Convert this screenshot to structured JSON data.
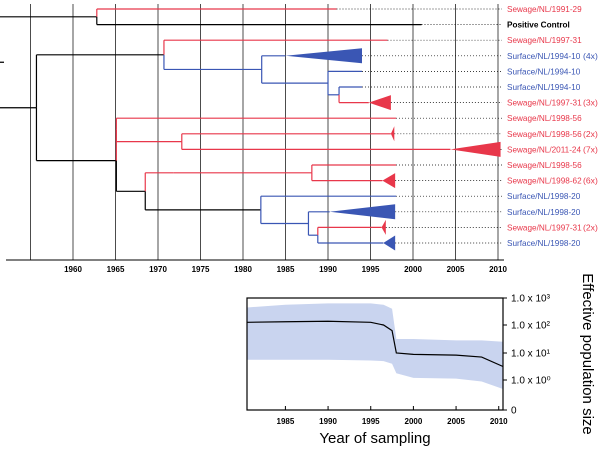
{
  "colors": {
    "sewage": "#e8374a",
    "surface": "#3a56b4",
    "control": "#000000",
    "band": "#c9d4ef",
    "grid": "#000000"
  },
  "tree": {
    "axis_years": [
      "1960",
      "1965",
      "1970",
      "1975",
      "1980",
      "1985",
      "1990",
      "1995",
      "2000",
      "2005",
      "2010"
    ],
    "tips": [
      {
        "label": "Sewage/NL/1991-29",
        "count": "",
        "group": "sewage"
      },
      {
        "label": "Positive Control",
        "count": "",
        "group": "control"
      },
      {
        "label": "Sewage/NL/1997-31",
        "count": "",
        "group": "sewage"
      },
      {
        "label": "Surface/NL/1994-10",
        "count": "(4x)",
        "group": "surface"
      },
      {
        "label": "Surface/NL/1994-10",
        "count": "",
        "group": "surface"
      },
      {
        "label": "Surface/NL/1994-10",
        "count": "",
        "group": "surface"
      },
      {
        "label": "Sewage/NL/1997-31",
        "count": "(3x)",
        "group": "sewage"
      },
      {
        "label": "Sewage/NL/1998-56",
        "count": "",
        "group": "sewage"
      },
      {
        "label": "Sewage/NL/1998-56",
        "count": "(2x)",
        "group": "sewage"
      },
      {
        "label": "Sewage/NL/2011-24",
        "count": "(7x)",
        "group": "sewage"
      },
      {
        "label": "Sewage/NL/1998-56",
        "count": "",
        "group": "sewage"
      },
      {
        "label": "Sewage/NL/1998-62",
        "count": "(6x)",
        "group": "sewage"
      },
      {
        "label": "Surface/NL/1998-20",
        "count": "",
        "group": "surface"
      },
      {
        "label": "Surface/NL/1998-20",
        "count": "",
        "group": "surface"
      },
      {
        "label": "Sewage/NL/1997-31",
        "count": "(2x)",
        "group": "sewage"
      },
      {
        "label": "Surface/NL/1998-20",
        "count": "",
        "group": "surface"
      }
    ]
  },
  "chart_data": {
    "type": "line",
    "xlabel": "Year of sampling",
    "ylabel": "Effective population size",
    "x_ticks": [
      "1985",
      "1990",
      "1995",
      "2000",
      "2005",
      "2010"
    ],
    "y_ticks": [
      "0",
      "1.0 x 10⁰",
      "1.0 x 10¹",
      "1.0 x 10²",
      "1.0 x 10³"
    ],
    "y_scale": "log",
    "xlim": [
      1980.5,
      2010.5
    ],
    "series": [
      {
        "x": [
          1980.5,
          1985,
          1990,
          1995,
          1996.5,
          1997.5,
          1998,
          2000,
          2005,
          2008,
          2010.5
        ],
        "y": [
          2.1,
          2.12,
          2.14,
          2.1,
          2.0,
          1.8,
          1.0,
          0.95,
          0.92,
          0.85,
          0.5
        ],
        "lower": [
          0.75,
          0.75,
          0.75,
          0.72,
          0.7,
          0.6,
          0.25,
          0.08,
          0.05,
          -0.05,
          -0.3
        ],
        "upper": [
          2.65,
          2.75,
          2.8,
          2.8,
          2.75,
          2.6,
          1.5,
          1.5,
          1.45,
          1.45,
          1.4
        ]
      }
    ]
  }
}
